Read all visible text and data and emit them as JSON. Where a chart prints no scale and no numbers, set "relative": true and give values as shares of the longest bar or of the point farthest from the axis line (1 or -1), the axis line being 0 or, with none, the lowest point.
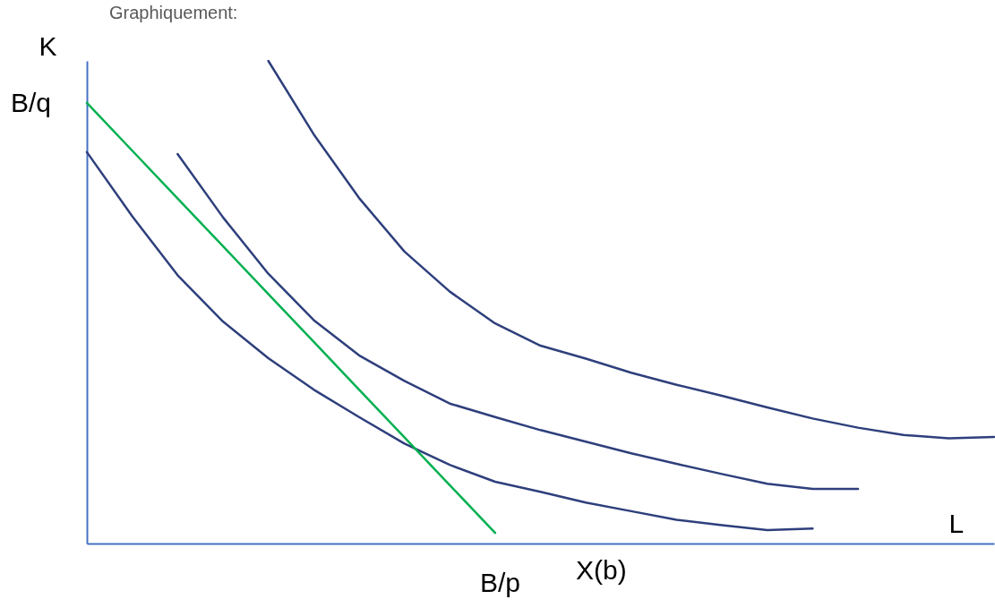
{
  "chart_data": {
    "type": "line",
    "relative": true,
    "title": "Graphiquement:",
    "xlabel": "L",
    "ylabel": "K",
    "legend": false,
    "grid": false,
    "marker": "none",
    "categories": [
      null,
      null,
      null,
      null,
      null,
      null,
      null,
      null,
      null,
      null,
      null,
      null,
      null,
      null,
      null,
      null,
      null,
      null,
      null,
      null,
      null
    ],
    "series": [
      {
        "color": "#2e3f7c",
        "values": [
          0.811,
          0.678,
          0.556,
          0.46,
          0.384,
          0.319,
          0.262,
          0.207,
          0.163,
          0.128,
          0.107,
          0.085,
          0.067,
          0.049,
          0.038,
          0.028,
          0.031,
          null,
          null,
          null,
          null
        ]
      },
      {
        "color": "#2e3f7c",
        "values": [
          null,
          null,
          0.807,
          0.676,
          0.559,
          0.463,
          0.39,
          0.337,
          0.29,
          0.262,
          0.235,
          0.211,
          0.187,
          0.165,
          0.144,
          0.124,
          0.113,
          0.113,
          null,
          null,
          null
        ]
      },
      {
        "color": "#2e3f7c",
        "values": [
          null,
          null,
          null,
          null,
          1,
          0.848,
          0.716,
          0.605,
          0.522,
          0.456,
          0.41,
          0.383,
          0.354,
          0.329,
          0.306,
          0.282,
          0.259,
          0.24,
          0.225,
          0.218,
          0.221
        ]
      },
      {
        "color": "#00b050",
        "values": [
          0.913,
          0.814,
          0.715,
          0.616,
          0.517,
          0.418,
          0.319,
          0.22,
          0.121,
          0.022,
          null,
          null,
          null,
          null,
          null,
          null,
          null,
          null,
          null,
          null,
          null
        ]
      }
    ],
    "annotations": [
      "B/q",
      "B/p",
      "X(b)"
    ]
  }
}
